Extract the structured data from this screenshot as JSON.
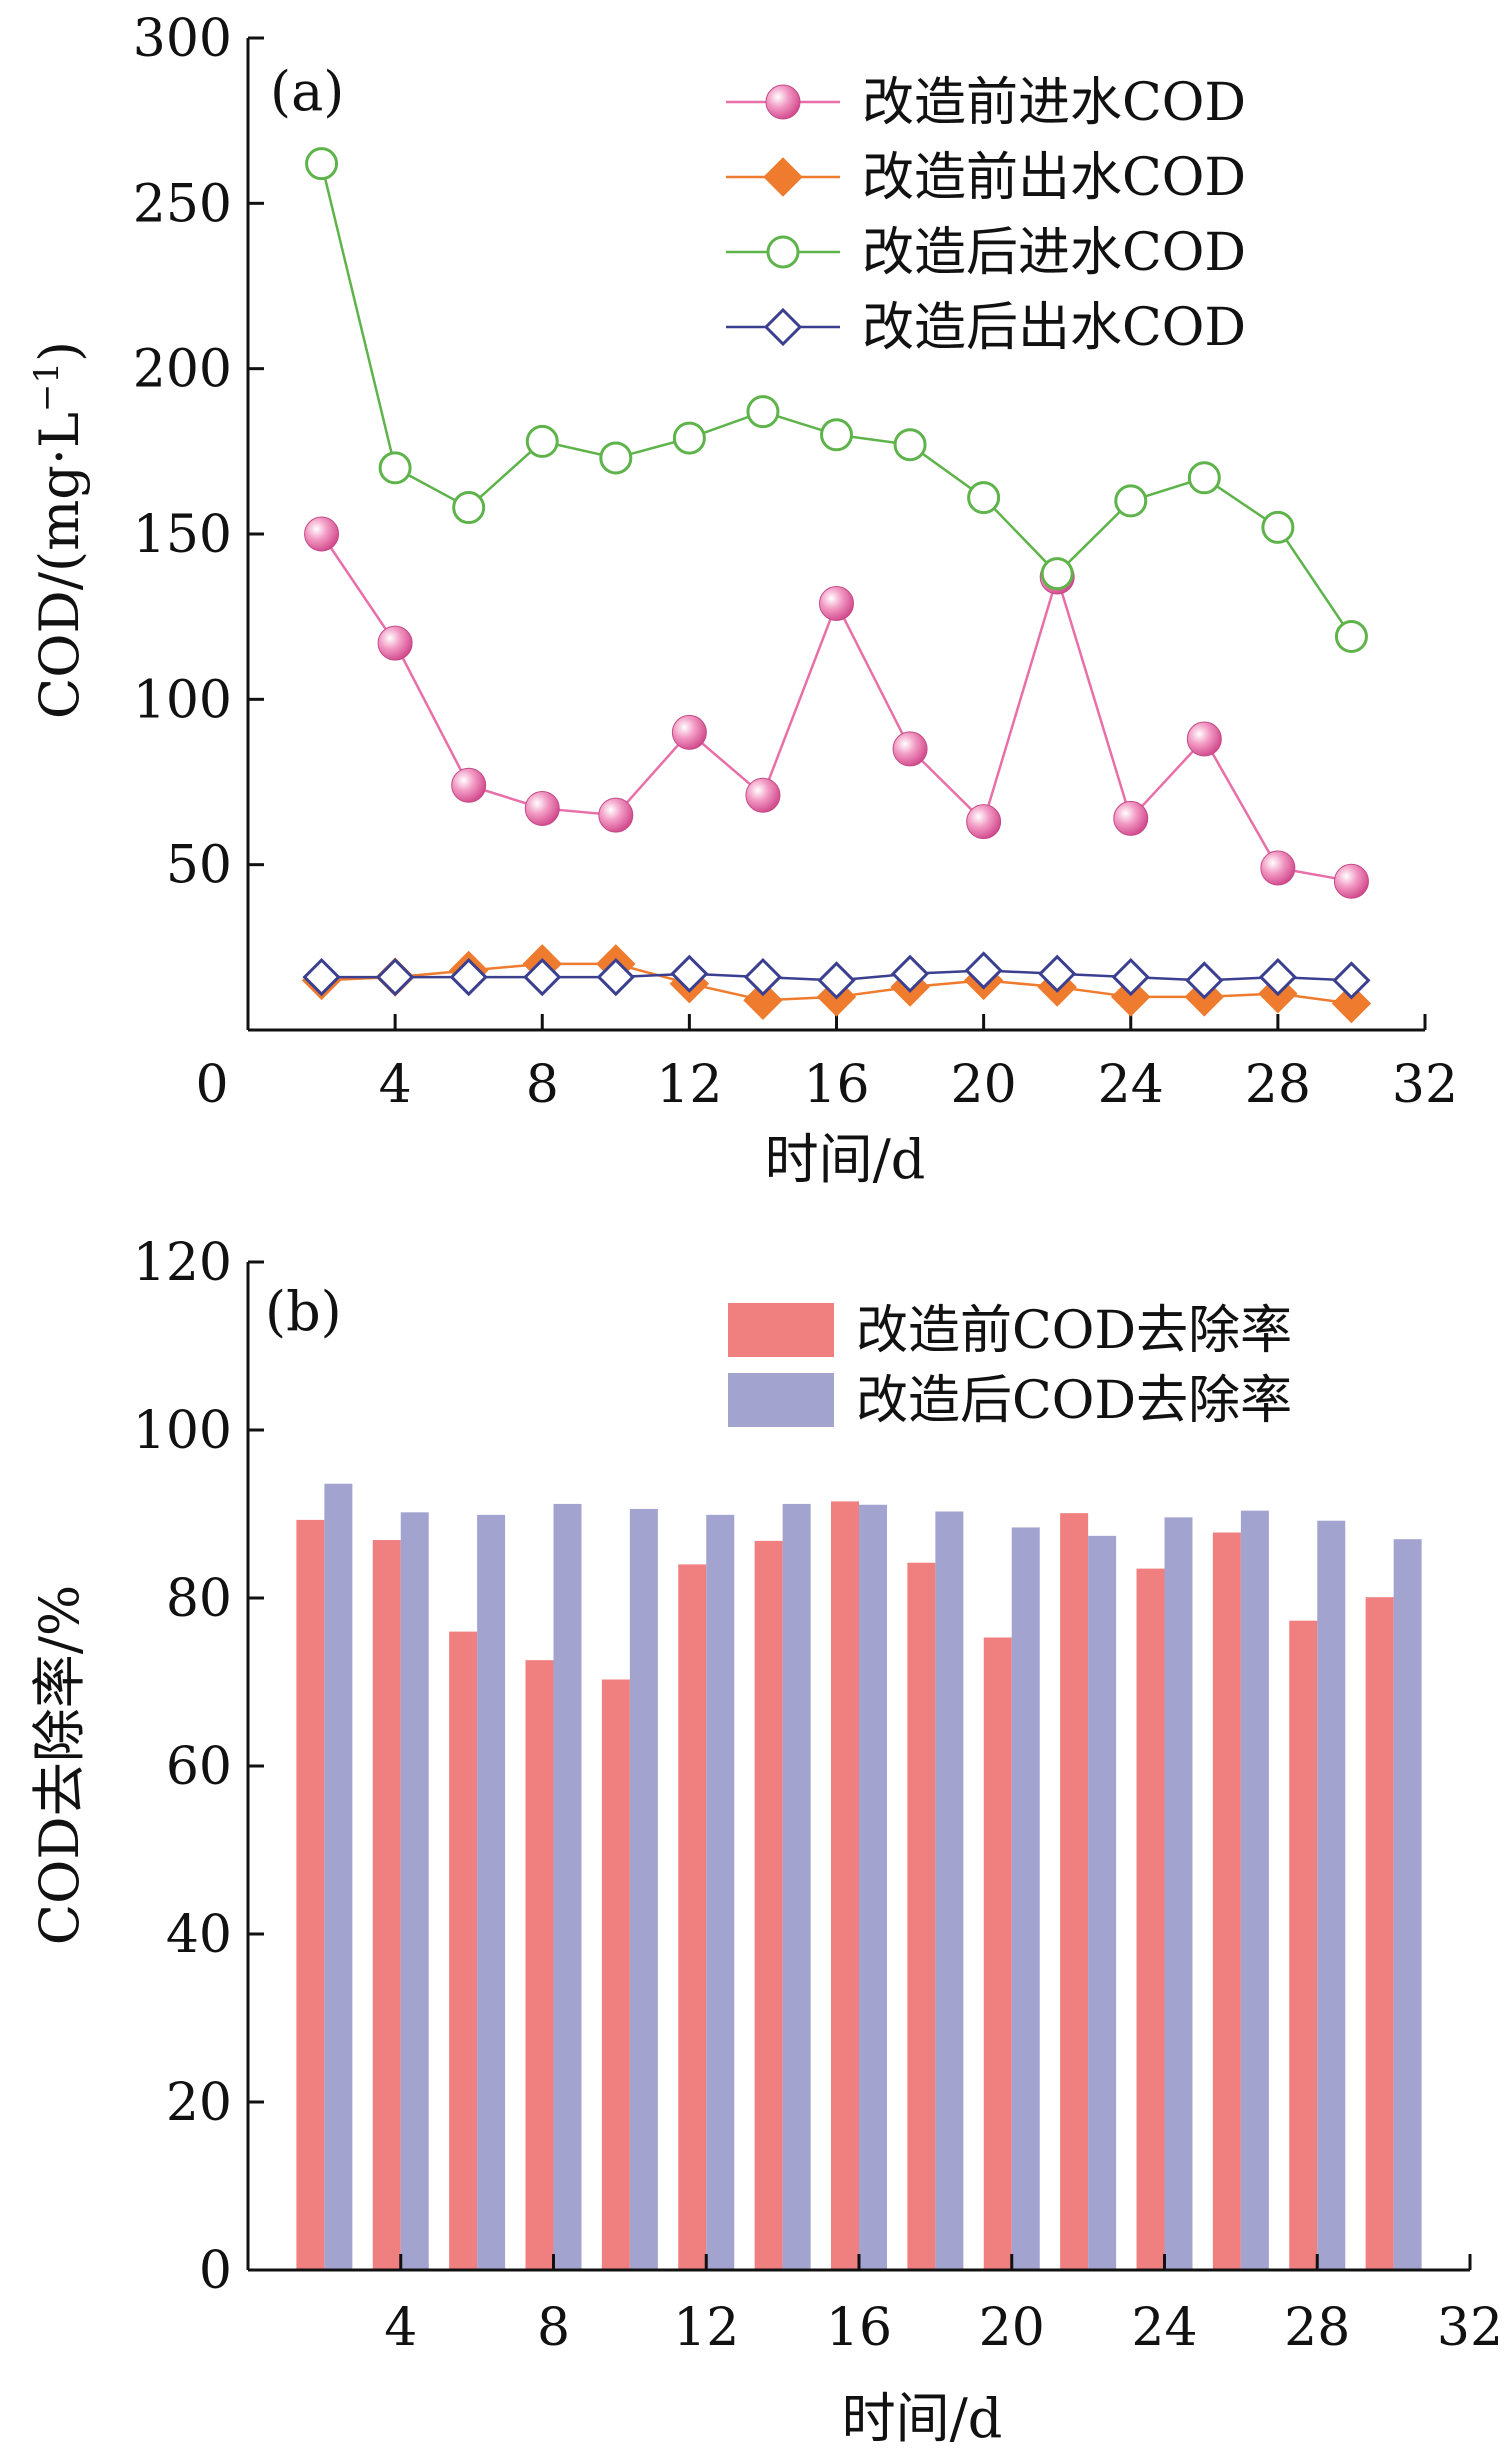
{
  "chart_data": [
    {
      "type": "line",
      "panel_label": "(a)",
      "xlabel": "时间/d",
      "ylabel": "COD/(mg·L",
      "ylabel_sup": "−1",
      "ylabel_close": ")",
      "xlim": [
        0,
        32
      ],
      "ylim": [
        0,
        300
      ],
      "x_ticks": [
        0,
        4,
        8,
        12,
        16,
        20,
        24,
        28,
        32
      ],
      "y_ticks": [
        50,
        100,
        150,
        200,
        250,
        300
      ],
      "y_origin_label": "0",
      "legend_position": "top-right",
      "x": [
        2,
        4,
        6,
        8,
        10,
        12,
        14,
        16,
        18,
        20,
        22,
        24,
        26,
        28,
        30
      ],
      "series": [
        {
          "name": "改造前进水COD",
          "color": "#e86fa8",
          "marker": "ball",
          "values": [
            150,
            117,
            74,
            67,
            65,
            90,
            71,
            129,
            85,
            63,
            137,
            64,
            88,
            49,
            45
          ]
        },
        {
          "name": "改造前出水COD",
          "color": "#ee7b2e",
          "marker": "diamond-filled",
          "values": [
            15,
            16,
            18,
            20,
            20,
            14,
            9,
            10,
            13,
            15,
            13,
            10,
            10,
            11,
            8
          ]
        },
        {
          "name": "改造后进水COD",
          "color": "#5eb34a",
          "marker": "circle-open",
          "values": [
            262,
            170,
            158,
            178,
            173,
            179,
            187,
            180,
            177,
            161,
            138,
            160,
            167,
            152,
            119
          ]
        },
        {
          "name": "改造后出水COD",
          "color": "#3b3f8f",
          "marker": "diamond-open",
          "values": [
            16,
            16,
            16,
            16,
            16,
            17,
            16,
            15,
            17,
            18,
            17,
            16,
            15,
            16,
            15
          ]
        }
      ]
    },
    {
      "type": "bar",
      "panel_label": "(b)",
      "xlabel": "时间/d",
      "ylabel": "COD去除率/%",
      "xlim": [
        0,
        32
      ],
      "ylim": [
        0,
        120
      ],
      "x_ticks": [
        4,
        8,
        12,
        16,
        20,
        24,
        28,
        32
      ],
      "y_ticks": [
        0,
        20,
        40,
        60,
        80,
        100,
        120
      ],
      "legend_position": "top-right",
      "x": [
        2,
        4,
        6,
        8,
        10,
        12,
        14,
        16,
        18,
        20,
        22,
        24,
        26,
        28,
        30
      ],
      "series": [
        {
          "name": "改造前COD去除率",
          "color": "#f08080",
          "values": [
            89.3,
            86.9,
            76.0,
            72.6,
            70.3,
            84.0,
            86.8,
            91.5,
            84.2,
            75.3,
            90.1,
            83.5,
            87.8,
            77.3,
            80.1
          ]
        },
        {
          "name": "改造后COD去除率",
          "color": "#a3a3cf",
          "values": [
            93.6,
            90.2,
            89.9,
            91.2,
            90.6,
            89.9,
            91.2,
            91.1,
            90.3,
            88.4,
            87.4,
            89.6,
            90.4,
            89.2,
            87.0
          ]
        }
      ]
    }
  ]
}
